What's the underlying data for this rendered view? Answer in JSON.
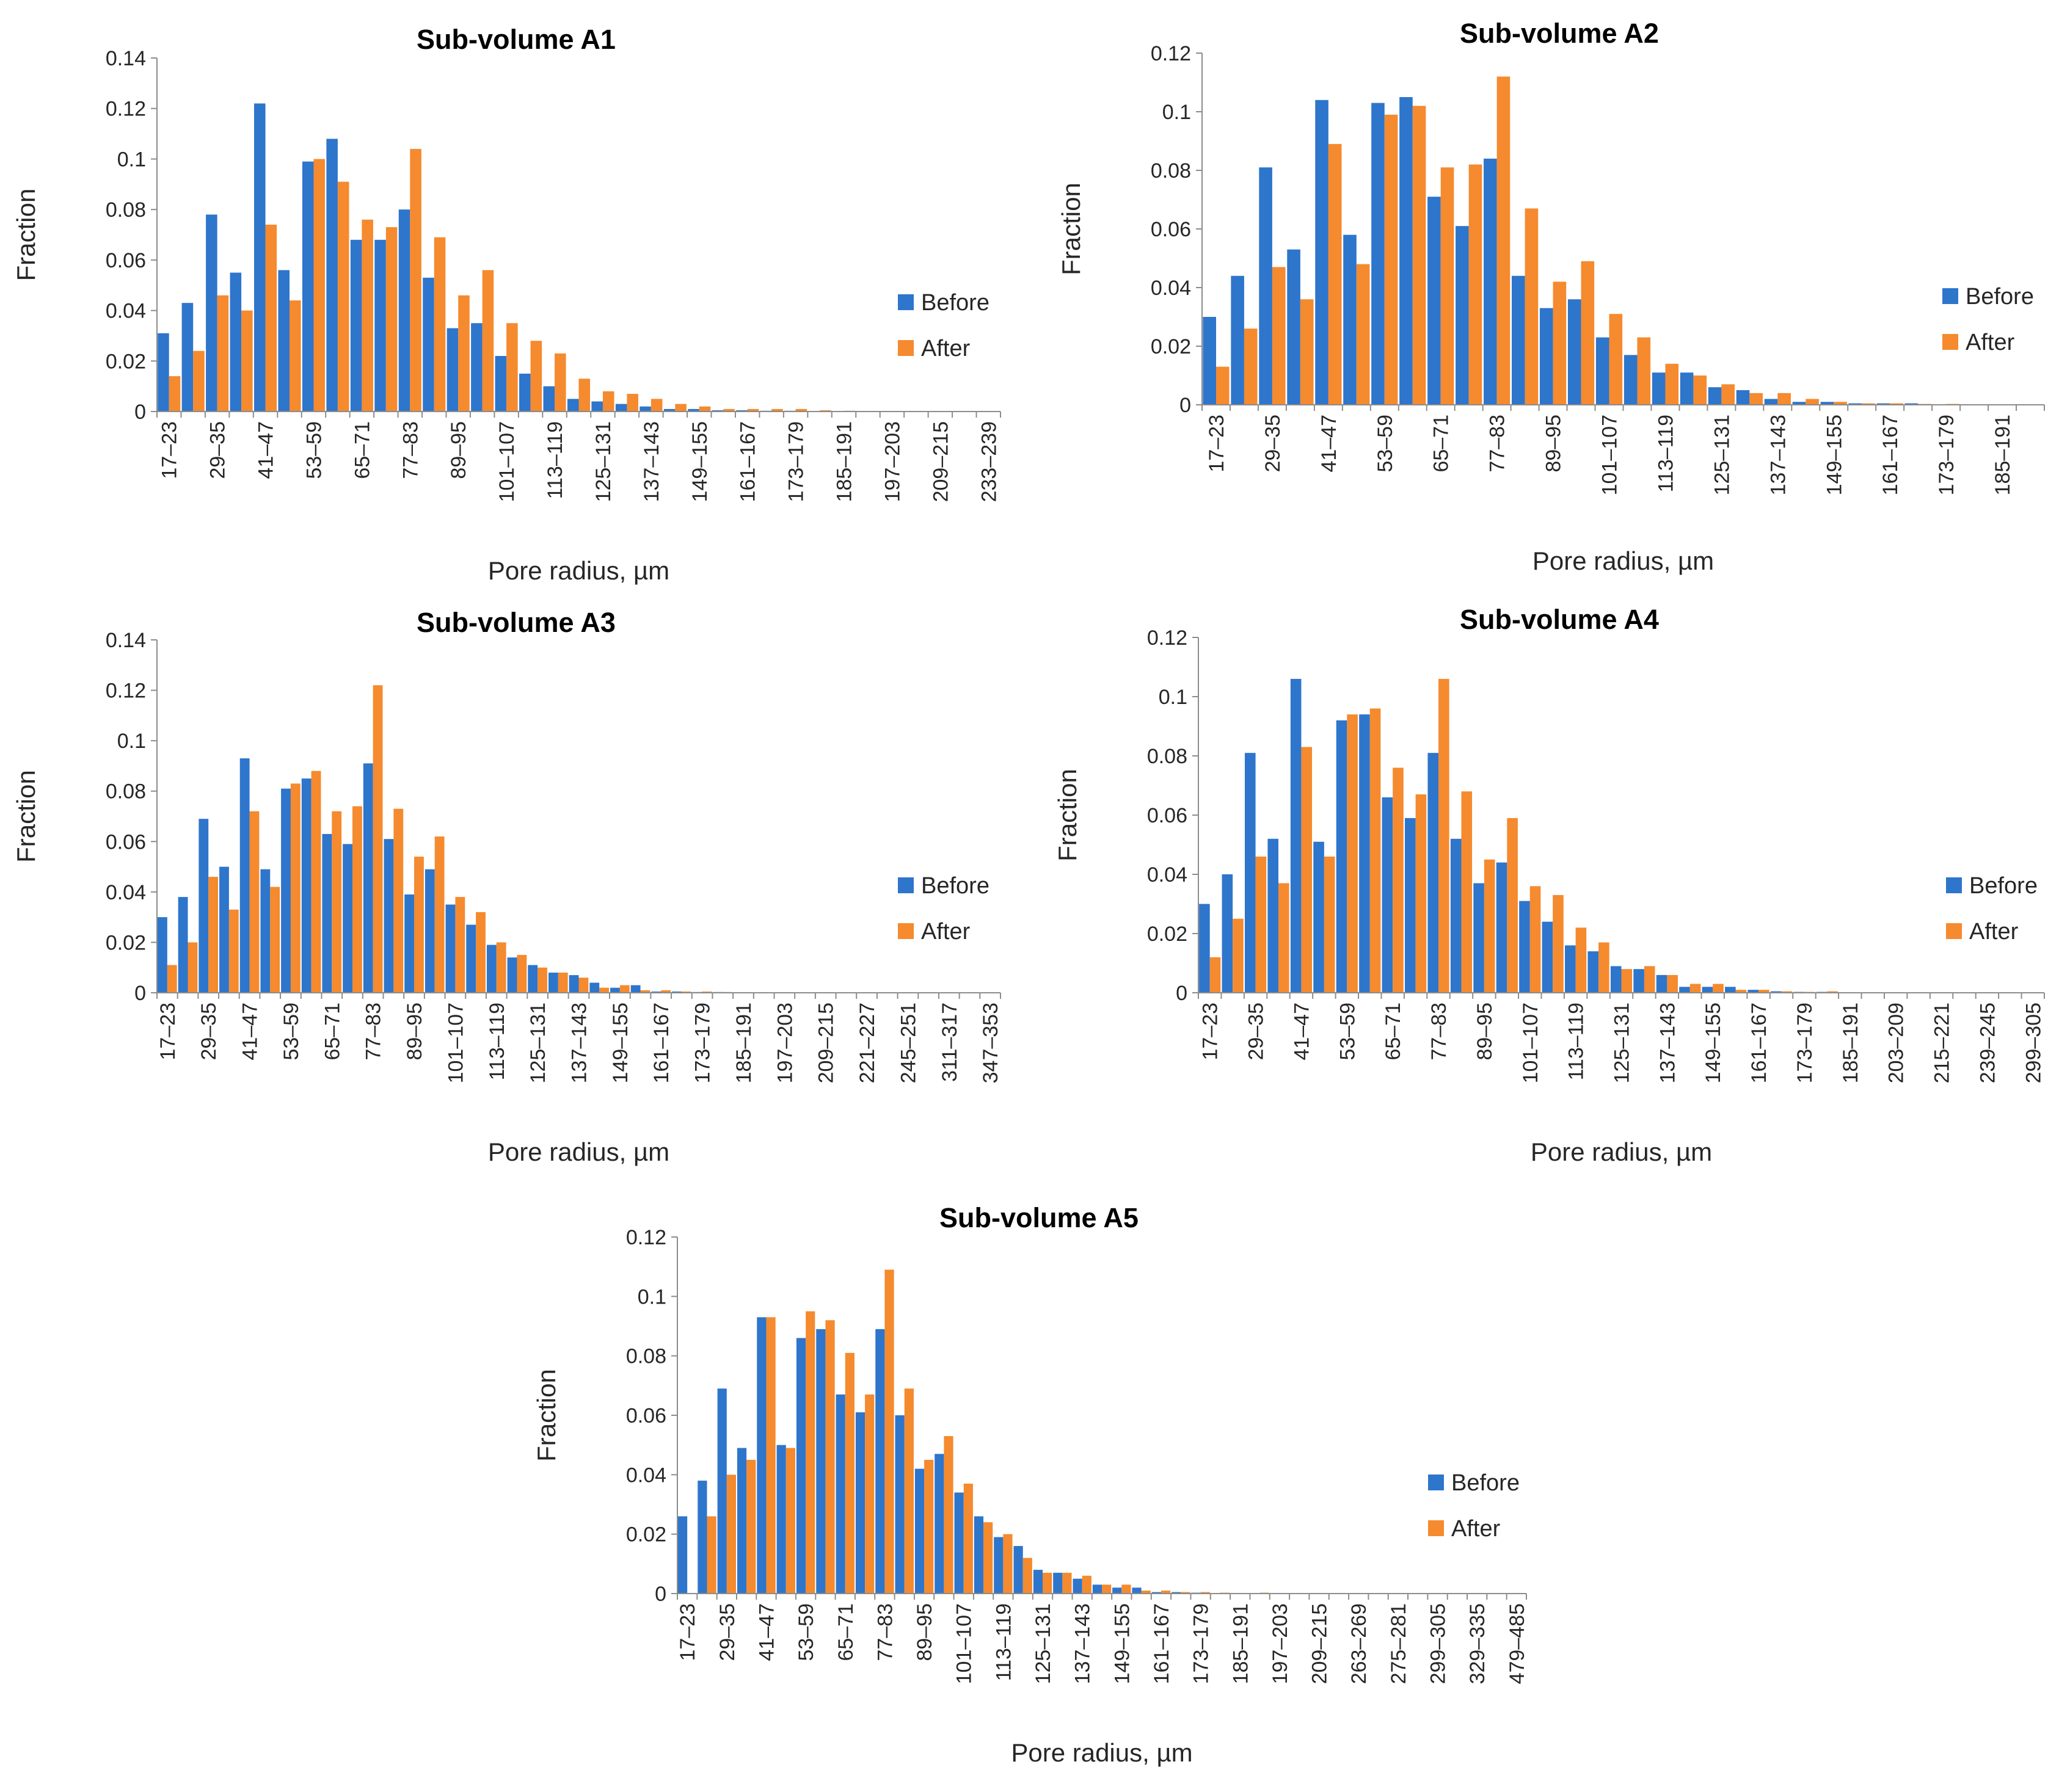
{
  "legend": {
    "before": "Before",
    "after": "After"
  },
  "colors": {
    "before": "#2E75CC",
    "after": "#F58A2E",
    "axis": "#8C8C8C",
    "text": "#262626"
  },
  "chart_data": [
    {
      "type": "bar",
      "title": "Sub-volume A1",
      "xlabel": "Pore radius, µm",
      "ylabel": "Fraction",
      "ylim": [
        0,
        0.14
      ],
      "yticks": [
        "0",
        "0.02",
        "0.04",
        "0.06",
        "0.08",
        "0.1",
        "0.12",
        "0.14"
      ],
      "categories": [
        "17–23",
        "23–29",
        "29–35",
        "35–41",
        "41–47",
        "47–53",
        "53–59",
        "59–65",
        "65–71",
        "71–77",
        "77–83",
        "83–89",
        "89–95",
        "95–101",
        "101–107",
        "107–113",
        "113–119",
        "119–125",
        "125–131",
        "131–137",
        "137–143",
        "143–149",
        "149–155",
        "155–161",
        "161–167",
        "167–173",
        "173–179",
        "179–185",
        "185–191",
        "191–197",
        "197–203",
        "203–209",
        "209–215",
        "215–233",
        "233–239"
      ],
      "tick_labels": [
        "17–23",
        "",
        "29–35",
        "",
        "41–47",
        "",
        "53–59",
        "",
        "65–71",
        "",
        "77–83",
        "",
        "89–95",
        "",
        "101–107",
        "",
        "113–119",
        "",
        "125–131",
        "",
        "137–143",
        "",
        "149–155",
        "",
        "161–167",
        "",
        "173–179",
        "",
        "185–191",
        "",
        "197–203",
        "",
        "209–215",
        "",
        "233–239"
      ],
      "series": [
        {
          "name": "Before",
          "values": [
            0.031,
            0.043,
            0.078,
            0.055,
            0.122,
            0.056,
            0.099,
            0.108,
            0.068,
            0.068,
            0.08,
            0.053,
            0.033,
            0.035,
            0.022,
            0.015,
            0.01,
            0.005,
            0.004,
            0.003,
            0.002,
            0.001,
            0.001,
            0.0005,
            0.0005,
            0.0003,
            0.0003,
            0.0002,
            0.0002,
            0.0001,
            0.0001,
            0.0001,
            0.0001,
            0.0001,
            0.0001
          ]
        },
        {
          "name": "After",
          "values": [
            0.014,
            0.024,
            0.046,
            0.04,
            0.074,
            0.044,
            0.1,
            0.091,
            0.076,
            0.073,
            0.104,
            0.069,
            0.046,
            0.056,
            0.035,
            0.028,
            0.023,
            0.013,
            0.008,
            0.007,
            0.005,
            0.003,
            0.002,
            0.001,
            0.001,
            0.001,
            0.001,
            0.0005,
            0.0003,
            0.0002,
            0.0001,
            0.0001,
            0.0001,
            0.0001,
            0.0001
          ]
        }
      ]
    },
    {
      "type": "bar",
      "title": "Sub-volume A2",
      "xlabel": "Pore radius, µm",
      "ylabel": "Fraction",
      "ylim": [
        0,
        0.12
      ],
      "yticks": [
        "0",
        "0.02",
        "0.04",
        "0.06",
        "0.08",
        "0.1",
        "0.12"
      ],
      "categories": [
        "17–23",
        "23–29",
        "29–35",
        "35–41",
        "41–47",
        "47–53",
        "53–59",
        "59–65",
        "65–71",
        "71–77",
        "77–83",
        "83–89",
        "89–95",
        "95–101",
        "101–107",
        "107–113",
        "113–119",
        "119–125",
        "125–131",
        "131–137",
        "137–143",
        "143–149",
        "149–155",
        "155–161",
        "161–167",
        "167–173",
        "173–179",
        "179–185",
        "185–191",
        "191–197"
      ],
      "tick_labels": [
        "17–23",
        "",
        "29–35",
        "",
        "41–47",
        "",
        "53–59",
        "",
        "65–71",
        "",
        "77–83",
        "",
        "89–95",
        "",
        "101–107",
        "",
        "113–119",
        "",
        "125–131",
        "",
        "137–143",
        "",
        "149–155",
        "",
        "161–167",
        "",
        "173–179",
        "",
        "185–191",
        ""
      ],
      "series": [
        {
          "name": "Before",
          "values": [
            0.03,
            0.044,
            0.081,
            0.053,
            0.104,
            0.058,
            0.103,
            0.105,
            0.071,
            0.061,
            0.084,
            0.044,
            0.033,
            0.036,
            0.023,
            0.017,
            0.011,
            0.011,
            0.006,
            0.005,
            0.002,
            0.001,
            0.001,
            0.0005,
            0.0005,
            0.0005,
            0.0002,
            0.0002,
            0.0001,
            0.0001
          ]
        },
        {
          "name": "After",
          "values": [
            0.013,
            0.026,
            0.047,
            0.036,
            0.089,
            0.048,
            0.099,
            0.102,
            0.081,
            0.082,
            0.112,
            0.067,
            0.042,
            0.049,
            0.031,
            0.023,
            0.014,
            0.01,
            0.007,
            0.004,
            0.004,
            0.002,
            0.001,
            0.0005,
            0.0005,
            0.0003,
            0.0003,
            0.0002,
            0.0001,
            0.0001
          ]
        }
      ]
    },
    {
      "type": "bar",
      "title": "Sub-volume A3",
      "xlabel": "Pore radius, µm",
      "ylabel": "Fraction",
      "ylim": [
        0,
        0.14
      ],
      "yticks": [
        "0",
        "0.02",
        "0.04",
        "0.06",
        "0.08",
        "0.1",
        "0.12",
        "0.14"
      ],
      "categories": [
        "17–23",
        "23–29",
        "29–35",
        "35–41",
        "41–47",
        "47–53",
        "53–59",
        "59–65",
        "65–71",
        "71–77",
        "77–83",
        "83–89",
        "89–95",
        "95–101",
        "101–107",
        "107–113",
        "113–119",
        "119–125",
        "125–131",
        "131–137",
        "137–143",
        "143–149",
        "149–155",
        "155–161",
        "161–167",
        "167–173",
        "173–179",
        "179–185",
        "185–191",
        "191–197",
        "197–203",
        "203–209",
        "209–215",
        "215–221",
        "221–227",
        "227–245",
        "245–251",
        "251–311",
        "311–317",
        "317–347",
        "347–353"
      ],
      "tick_labels": [
        "17–23",
        "",
        "29–35",
        "",
        "41–47",
        "",
        "53–59",
        "",
        "65–71",
        "",
        "77–83",
        "",
        "89–95",
        "",
        "101–107",
        "",
        "113–119",
        "",
        "125–131",
        "",
        "137–143",
        "",
        "149–155",
        "",
        "161–167",
        "",
        "173–179",
        "",
        "185–191",
        "",
        "197–203",
        "",
        "209–215",
        "",
        "221–227",
        "",
        "245–251",
        "",
        "311–317",
        "",
        "347–353"
      ],
      "series": [
        {
          "name": "Before",
          "values": [
            0.03,
            0.038,
            0.069,
            0.05,
            0.093,
            0.049,
            0.081,
            0.085,
            0.063,
            0.059,
            0.091,
            0.061,
            0.039,
            0.049,
            0.035,
            0.027,
            0.019,
            0.014,
            0.011,
            0.008,
            0.007,
            0.004,
            0.002,
            0.003,
            0.0005,
            0.0005,
            0.0003,
            0.0003,
            0.0002,
            0.0001,
            0.0001,
            0.0001,
            0.0001,
            0.0001,
            0.0001,
            0.0001,
            0.0001,
            0.0001,
            0.0001,
            0.0001,
            0.0001
          ]
        },
        {
          "name": "After",
          "values": [
            0.011,
            0.02,
            0.046,
            0.033,
            0.072,
            0.042,
            0.083,
            0.088,
            0.072,
            0.074,
            0.122,
            0.073,
            0.054,
            0.062,
            0.038,
            0.032,
            0.02,
            0.015,
            0.01,
            0.008,
            0.006,
            0.002,
            0.003,
            0.001,
            0.001,
            0.0005,
            0.0005,
            0.0003,
            0.0002,
            0.0001,
            0.0001,
            0.0001,
            0.0001,
            0.0001,
            0.0001,
            0.0001,
            0.0001,
            0.0001,
            0.0001,
            0.0001,
            0.0001
          ]
        }
      ]
    },
    {
      "type": "bar",
      "title": "Sub-volume A4",
      "xlabel": "Pore radius, µm",
      "ylabel": "Fraction",
      "ylim": [
        0,
        0.12
      ],
      "yticks": [
        "0",
        "0.02",
        "0.04",
        "0.06",
        "0.08",
        "0.1",
        "0.12"
      ],
      "categories": [
        "17–23",
        "23–29",
        "29–35",
        "35–41",
        "41–47",
        "47–53",
        "53–59",
        "59–65",
        "65–71",
        "71–77",
        "77–83",
        "83–89",
        "89–95",
        "95–101",
        "101–107",
        "107–113",
        "113–119",
        "119–125",
        "125–131",
        "131–137",
        "137–143",
        "143–149",
        "149–155",
        "155–161",
        "161–167",
        "167–173",
        "173–179",
        "179–185",
        "185–191",
        "191–203",
        "203–209",
        "209–215",
        "215–221",
        "221–239",
        "239–245",
        "245–299",
        "299–305"
      ],
      "tick_labels": [
        "17–23",
        "",
        "29–35",
        "",
        "41–47",
        "",
        "53–59",
        "",
        "65–71",
        "",
        "77–83",
        "",
        "89–95",
        "",
        "101–107",
        "",
        "113–119",
        "",
        "125–131",
        "",
        "137–143",
        "",
        "149–155",
        "",
        "161–167",
        "",
        "173–179",
        "",
        "185–191",
        "",
        "203–209",
        "",
        "215–221",
        "",
        "239–245",
        "",
        "299–305"
      ],
      "series": [
        {
          "name": "Before",
          "values": [
            0.03,
            0.04,
            0.081,
            0.052,
            0.106,
            0.051,
            0.092,
            0.094,
            0.066,
            0.059,
            0.081,
            0.052,
            0.037,
            0.044,
            0.031,
            0.024,
            0.016,
            0.014,
            0.009,
            0.008,
            0.006,
            0.002,
            0.002,
            0.002,
            0.001,
            0.0005,
            0.0003,
            0.0003,
            0.0002,
            0.0001,
            0.0001,
            0.0001,
            0.0001,
            0.0001,
            0.0001,
            0.0001,
            0.0001
          ]
        },
        {
          "name": "After",
          "values": [
            0.012,
            0.025,
            0.046,
            0.037,
            0.083,
            0.046,
            0.094,
            0.096,
            0.076,
            0.067,
            0.106,
            0.068,
            0.045,
            0.059,
            0.036,
            0.033,
            0.022,
            0.017,
            0.008,
            0.009,
            0.006,
            0.003,
            0.003,
            0.001,
            0.001,
            0.0005,
            0.0003,
            0.0005,
            0.0002,
            0.0001,
            0.0001,
            0.0001,
            0.0001,
            0.0001,
            0.0001,
            0.0001,
            0.0001
          ]
        }
      ]
    },
    {
      "type": "bar",
      "title": "Sub-volume A5",
      "xlabel": "Pore radius, µm",
      "ylabel": "Fraction",
      "ylim": [
        0,
        0.12
      ],
      "yticks": [
        "0",
        "0.02",
        "0.04",
        "0.06",
        "0.08",
        "0.1",
        "0.12"
      ],
      "categories": [
        "17–23",
        "23–29",
        "29–35",
        "35–41",
        "41–47",
        "47–53",
        "53–59",
        "59–65",
        "65–71",
        "71–77",
        "77–83",
        "83–89",
        "89–95",
        "95–101",
        "101–107",
        "107–113",
        "113–119",
        "119–125",
        "125–131",
        "131–137",
        "137–143",
        "143–149",
        "149–155",
        "155–161",
        "161–167",
        "167–173",
        "173–179",
        "179–185",
        "185–191",
        "191–197",
        "197–203",
        "203–209",
        "209–215",
        "215–263",
        "263–269",
        "269–275",
        "275–281",
        "281–299",
        "299–305",
        "305–329",
        "329–335",
        "335–479",
        "479–485"
      ],
      "tick_labels": [
        "17–23",
        "",
        "29–35",
        "",
        "41–47",
        "",
        "53–59",
        "",
        "65–71",
        "",
        "77–83",
        "",
        "89–95",
        "",
        "101–107",
        "",
        "113–119",
        "",
        "125–131",
        "",
        "137–143",
        "",
        "149–155",
        "",
        "161–167",
        "",
        "173–179",
        "",
        "185–191",
        "",
        "197–203",
        "",
        "209–215",
        "",
        "263–269",
        "",
        "275–281",
        "",
        "299–305",
        "",
        "329–335",
        "",
        "479–485"
      ],
      "series": [
        {
          "name": "Before",
          "values": [
            0.026,
            0.038,
            0.069,
            0.049,
            0.093,
            0.05,
            0.086,
            0.089,
            0.067,
            0.061,
            0.089,
            0.06,
            0.042,
            0.047,
            0.034,
            0.026,
            0.019,
            0.016,
            0.008,
            0.007,
            0.005,
            0.003,
            0.002,
            0.002,
            0.0005,
            0.0005,
            0.0003,
            0.0002,
            0.0002,
            0.0001,
            0.0001,
            0.0001,
            0.0001,
            0.0001,
            0.0001,
            0.0001,
            0.0001,
            0.0001,
            0.0001,
            0.0001,
            0.0001,
            0.0001,
            0.0001
          ]
        },
        {
          "name": "After",
          "values": [
            0.0,
            0.026,
            0.04,
            0.045,
            0.093,
            0.049,
            0.095,
            0.092,
            0.081,
            0.067,
            0.109,
            0.069,
            0.045,
            0.053,
            0.037,
            0.024,
            0.02,
            0.012,
            0.007,
            0.007,
            0.006,
            0.003,
            0.003,
            0.001,
            0.001,
            0.0005,
            0.0005,
            0.0003,
            0.0002,
            0.0003,
            0.0001,
            0.0001,
            0.0002,
            0.0001,
            0.0001,
            0.0001,
            0.0001,
            0.0001,
            0.0001,
            0.0001,
            0.0001,
            0.0001,
            0.0001
          ]
        }
      ]
    }
  ]
}
